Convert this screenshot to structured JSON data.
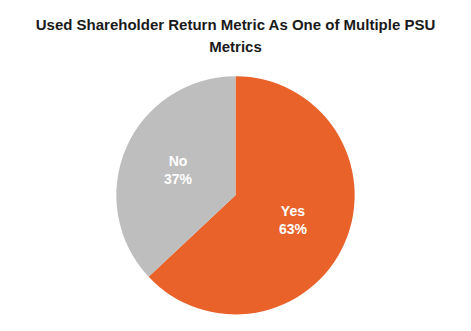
{
  "chart_data": {
    "type": "pie",
    "title": "Used Shareholder Return Metric As One of Multiple PSU\nMetrics",
    "categories": [
      "Yes",
      "No"
    ],
    "values": [
      63,
      37
    ],
    "value_labels": [
      "63%",
      "37%"
    ],
    "colors": [
      "#E8622A",
      "#BEBEBE"
    ],
    "data_labels": true
  }
}
